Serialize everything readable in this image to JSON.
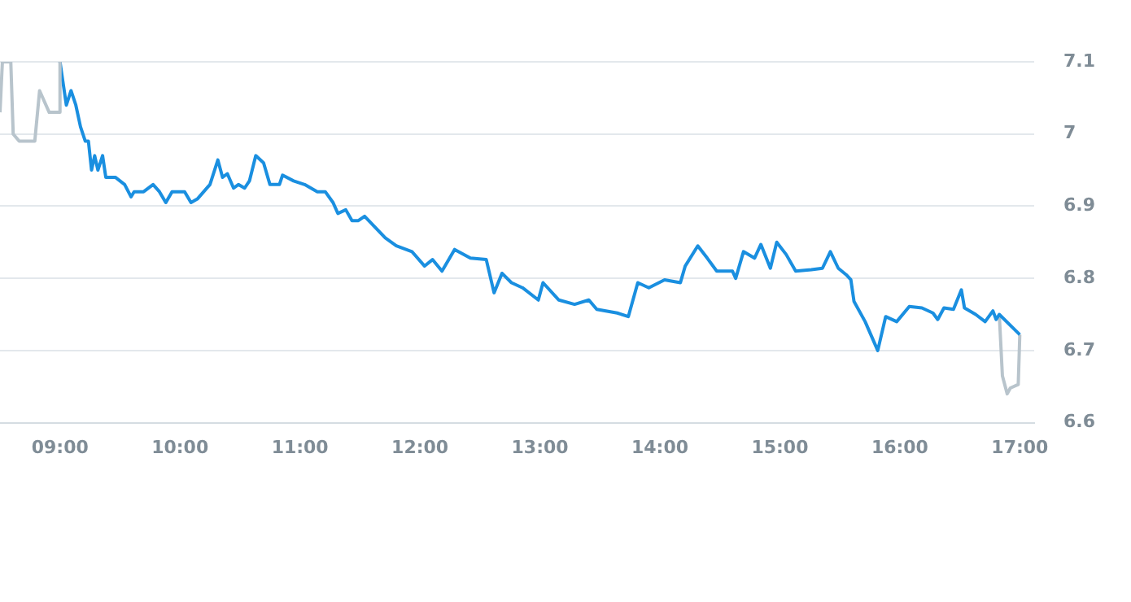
{
  "chart_data": {
    "type": "line",
    "xlim": [
      8.5,
      17.12
    ],
    "ylim": [
      6.6,
      7.1
    ],
    "xticks": [
      {
        "value": 9,
        "label": "09:00"
      },
      {
        "value": 10,
        "label": "10:00"
      },
      {
        "value": 11,
        "label": "11:00"
      },
      {
        "value": 12,
        "label": "12:00"
      },
      {
        "value": 13,
        "label": "13:00"
      },
      {
        "value": 14,
        "label": "14:00"
      },
      {
        "value": 15,
        "label": "15:00"
      },
      {
        "value": 16,
        "label": "16:00"
      },
      {
        "value": 17,
        "label": "17:00"
      }
    ],
    "yticks": [
      6.6,
      6.7,
      6.8,
      6.9,
      7,
      7.1
    ],
    "grid": "y",
    "legend": false,
    "marker": "none",
    "line_style": "solid",
    "series": [
      {
        "color": "#b8c4cc",
        "x": [
          8.5,
          8.52,
          8.59,
          8.61,
          8.66,
          8.79,
          8.83,
          8.91,
          8.99,
          9.0
        ],
        "values": [
          7.03,
          7.1,
          7.1,
          7.0,
          6.99,
          6.99,
          7.06,
          7.03,
          7.03,
          7.1
        ]
      },
      {
        "color": "#1a8fe0",
        "x": [
          9.0,
          9.053,
          9.092,
          9.132,
          9.171,
          9.211,
          9.237,
          9.263,
          9.289,
          9.316,
          9.355,
          9.382,
          9.461,
          9.539,
          9.592,
          9.618,
          9.697,
          9.776,
          9.829,
          9.882,
          9.934,
          10.039,
          10.092,
          10.145,
          10.25,
          10.316,
          10.355,
          10.395,
          10.447,
          10.487,
          10.539,
          10.579,
          10.632,
          10.697,
          10.75,
          10.829,
          10.855,
          10.947,
          11.039,
          11.145,
          11.211,
          11.276,
          11.316,
          11.382,
          11.434,
          11.487,
          11.539,
          11.711,
          11.803,
          11.934,
          12.039,
          12.105,
          12.184,
          12.289,
          12.421,
          12.553,
          12.618,
          12.684,
          12.763,
          12.855,
          12.987,
          13.026,
          13.158,
          13.289,
          13.408,
          13.474,
          13.645,
          13.737,
          13.816,
          13.908,
          14.039,
          14.171,
          14.211,
          14.316,
          14.395,
          14.474,
          14.605,
          14.632,
          14.697,
          14.789,
          14.842,
          14.921,
          14.974,
          15.053,
          15.132,
          15.263,
          15.355,
          15.421,
          15.487,
          15.553,
          15.592,
          15.618,
          15.711,
          15.816,
          15.882,
          15.974,
          16.079,
          16.184,
          16.276,
          16.316,
          16.368,
          16.447,
          16.513,
          16.539,
          16.632,
          16.711,
          16.776,
          16.803,
          16.829,
          17.0
        ],
        "values": [
          7.1,
          7.04,
          7.06,
          7.04,
          7.01,
          6.99,
          6.99,
          6.95,
          6.97,
          6.95,
          6.97,
          6.94,
          6.94,
          6.93,
          6.913,
          6.92,
          6.92,
          6.93,
          6.92,
          6.905,
          6.92,
          6.92,
          6.905,
          6.91,
          6.93,
          6.964,
          6.94,
          6.945,
          6.925,
          6.93,
          6.925,
          6.935,
          6.97,
          6.96,
          6.93,
          6.93,
          6.943,
          6.935,
          6.93,
          6.92,
          6.92,
          6.905,
          6.89,
          6.895,
          6.88,
          6.88,
          6.886,
          6.856,
          6.845,
          6.837,
          6.817,
          6.826,
          6.81,
          6.84,
          6.828,
          6.826,
          6.78,
          6.807,
          6.794,
          6.787,
          6.77,
          6.794,
          6.77,
          6.764,
          6.77,
          6.757,
          6.752,
          6.747,
          6.794,
          6.787,
          6.798,
          6.794,
          6.817,
          6.845,
          6.828,
          6.81,
          6.81,
          6.8,
          6.837,
          6.828,
          6.847,
          6.814,
          6.85,
          6.833,
          6.81,
          6.812,
          6.814,
          6.837,
          6.814,
          6.805,
          6.798,
          6.768,
          6.74,
          6.7,
          6.747,
          6.74,
          6.761,
          6.759,
          6.752,
          6.743,
          6.759,
          6.757,
          6.784,
          6.759,
          6.75,
          6.74,
          6.755,
          6.743,
          6.75,
          6.722
        ]
      },
      {
        "color": "#b8c4cc",
        "x": [
          16.829,
          16.855,
          16.895,
          16.921,
          16.987,
          17.0
        ],
        "values": [
          6.75,
          6.665,
          6.64,
          6.648,
          6.653,
          6.722
        ]
      }
    ]
  }
}
